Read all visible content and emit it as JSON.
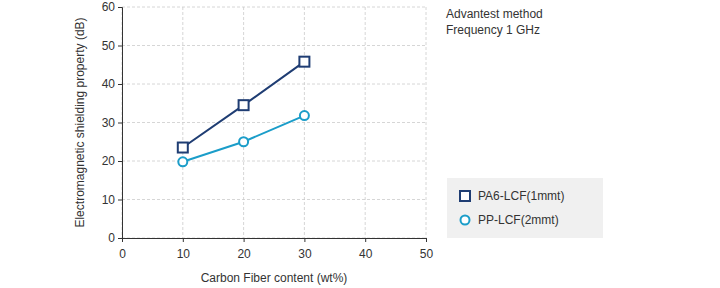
{
  "chart_data": {
    "type": "line",
    "xlabel": "Carbon Fiber content (wt%)",
    "ylabel": "Electromagnetic shielding property (dB)",
    "annotations": [
      "Advantest method",
      "Frequency 1 GHz"
    ],
    "x": [
      10,
      20,
      30
    ],
    "series": [
      {
        "name": "PA6-LCF(1mmt)",
        "color": "#1f3d73",
        "marker": "square",
        "values": [
          23.5,
          34.5,
          45.8
        ]
      },
      {
        "name": "PP-LCF(2mmt)",
        "color": "#1b9dc9",
        "marker": "circle",
        "values": [
          19.8,
          25,
          31.8
        ]
      }
    ],
    "xlim": [
      0,
      50
    ],
    "xticks": [
      0,
      10,
      20,
      30,
      40,
      50
    ],
    "ylim": [
      0,
      60
    ],
    "yticks": [
      0,
      10,
      20,
      30,
      40,
      50,
      60
    ],
    "grid": true,
    "legend": "right"
  }
}
